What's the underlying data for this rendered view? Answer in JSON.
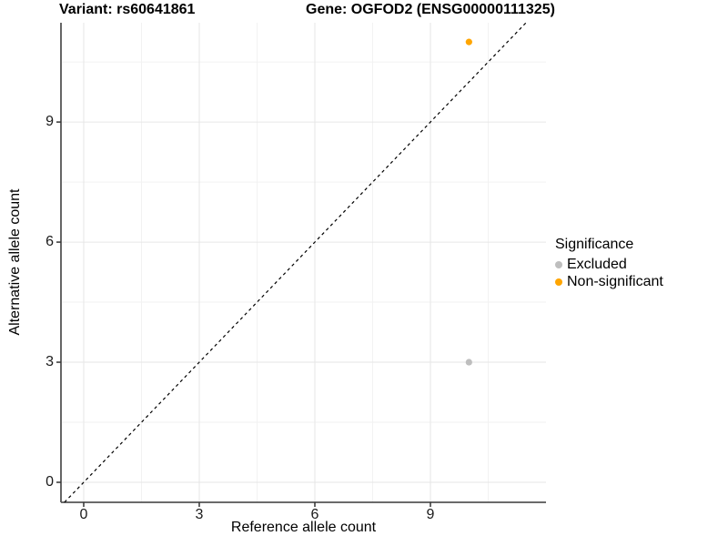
{
  "chart_data": {
    "type": "scatter",
    "title_left": "Variant: rs60641861",
    "title_right": "Gene: OGFOD2 (ENSG00000111325)",
    "xlabel": "Reference allele count",
    "ylabel": "Alternative allele count",
    "xlim": [
      -0.59,
      12.0
    ],
    "ylim": [
      -0.5,
      11.48
    ],
    "xticks": [
      0,
      3,
      6,
      9
    ],
    "yticks": [
      0,
      3,
      6,
      9
    ],
    "x_minor_gridlines": [
      1.5,
      4.5,
      7.5,
      10.5
    ],
    "y_minor_gridlines": [
      1.5,
      4.5,
      7.5,
      10.5
    ],
    "grid": true,
    "identity_line": {
      "slope": 1,
      "intercept": 0,
      "style": "dashed",
      "color": "#000000"
    },
    "series": [
      {
        "name": "Excluded",
        "color": "#bebebe",
        "points": [
          [
            10,
            3
          ]
        ]
      },
      {
        "name": "Non-significant",
        "color": "#ffa500",
        "points": [
          [
            10,
            11
          ]
        ]
      }
    ],
    "legend_title": "Significance",
    "legend_position": "right"
  },
  "legend": {
    "title": "Significance",
    "items": [
      {
        "label": "Excluded",
        "color": "#bebebe"
      },
      {
        "label": "Non-significant",
        "color": "#ffa500"
      }
    ]
  },
  "colors": {
    "background": "#ffffff",
    "axis_line": "#555555",
    "tick_mark": "#333333",
    "tick_text": "#1a1a1a",
    "grid_major": "#e6e6e6",
    "grid_minor": "#f2f2f2",
    "identity_line": "#000000"
  }
}
